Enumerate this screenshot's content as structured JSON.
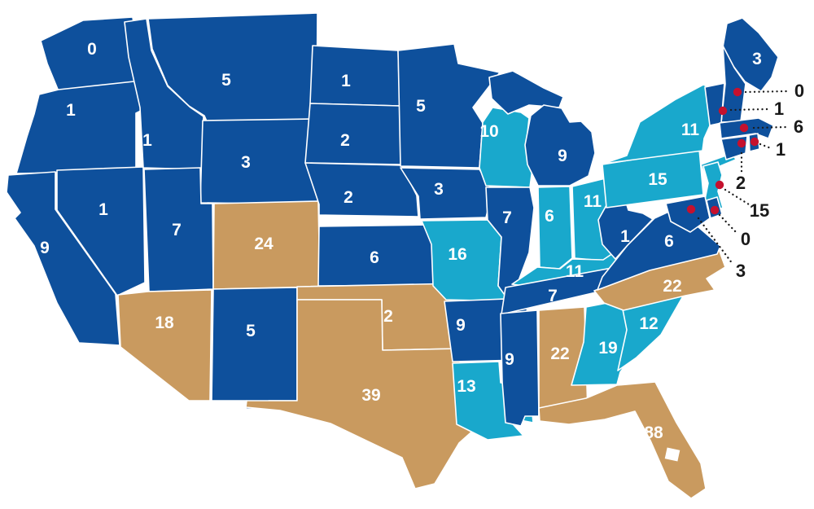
{
  "figure": {
    "name": "us-states-choropleth",
    "background": "#ffffff",
    "state_border_color": "#ffffff",
    "state_label_color": "#ffffff",
    "callout_label_color": "#1a1a1a",
    "marker_color": "#c5112e",
    "palette": {
      "navy": "#0e509c",
      "cyan": "#19a8cc",
      "tan": "#c99a5f"
    }
  },
  "chart_data": {
    "type": "choropleth-map",
    "region": "United States (contiguous 48 states)",
    "legend_position": "none",
    "color_categories": [
      "navy",
      "cyan",
      "tan"
    ],
    "states": [
      {
        "id": "WA",
        "value": "0",
        "category": "navy"
      },
      {
        "id": "OR",
        "value": "1",
        "category": "navy"
      },
      {
        "id": "CA",
        "value": "9",
        "category": "navy"
      },
      {
        "id": "NV",
        "value": "1",
        "category": "navy"
      },
      {
        "id": "ID",
        "value": "1",
        "category": "navy"
      },
      {
        "id": "MT",
        "value": "5",
        "category": "navy"
      },
      {
        "id": "WY",
        "value": "3",
        "category": "navy"
      },
      {
        "id": "UT",
        "value": "7",
        "category": "navy"
      },
      {
        "id": "CO",
        "value": "24",
        "category": "tan"
      },
      {
        "id": "AZ",
        "value": "18",
        "category": "tan"
      },
      {
        "id": "NM",
        "value": "5",
        "category": "navy"
      },
      {
        "id": "ND",
        "value": "1",
        "category": "navy"
      },
      {
        "id": "SD",
        "value": "2",
        "category": "navy"
      },
      {
        "id": "NE",
        "value": "2",
        "category": "navy"
      },
      {
        "id": "KS",
        "value": "6",
        "category": "navy"
      },
      {
        "id": "OK",
        "value": "2",
        "category": "tan"
      },
      {
        "id": "TX",
        "value": "39",
        "category": "tan"
      },
      {
        "id": "MN",
        "value": "5",
        "category": "navy"
      },
      {
        "id": "IA",
        "value": "3",
        "category": "navy"
      },
      {
        "id": "MO",
        "value": "16",
        "category": "cyan"
      },
      {
        "id": "AR",
        "value": "9",
        "category": "navy"
      },
      {
        "id": "LA",
        "value": "13",
        "category": "cyan"
      },
      {
        "id": "WI",
        "value": "10",
        "category": "cyan"
      },
      {
        "id": "IL",
        "value": "7",
        "category": "navy"
      },
      {
        "id": "MI",
        "value": "9",
        "category": "navy"
      },
      {
        "id": "IN",
        "value": "6",
        "category": "cyan"
      },
      {
        "id": "OH",
        "value": "11",
        "category": "cyan"
      },
      {
        "id": "KY",
        "value": "11",
        "category": "cyan"
      },
      {
        "id": "TN",
        "value": "7",
        "category": "navy"
      },
      {
        "id": "MS",
        "value": "9",
        "category": "navy"
      },
      {
        "id": "AL",
        "value": "22",
        "category": "tan"
      },
      {
        "id": "GA",
        "value": "19",
        "category": "cyan"
      },
      {
        "id": "FL",
        "value": "88",
        "category": "tan"
      },
      {
        "id": "SC",
        "value": "12",
        "category": "cyan"
      },
      {
        "id": "NC",
        "value": "22",
        "category": "tan"
      },
      {
        "id": "VA",
        "value": "6",
        "category": "navy"
      },
      {
        "id": "WV",
        "value": "1",
        "category": "navy"
      },
      {
        "id": "PA",
        "value": "15",
        "category": "cyan"
      },
      {
        "id": "NY",
        "value": "11",
        "category": "cyan"
      },
      {
        "id": "ME",
        "value": "3",
        "category": "navy"
      },
      {
        "id": "NH",
        "value": "0",
        "category": "navy",
        "callout": true
      },
      {
        "id": "VT",
        "value": "1",
        "category": "navy",
        "callout": true
      },
      {
        "id": "MA",
        "value": "6",
        "category": "navy",
        "callout": true
      },
      {
        "id": "RI",
        "value": "1",
        "category": "navy",
        "callout": true
      },
      {
        "id": "CT",
        "value": "2",
        "category": "navy",
        "callout": true
      },
      {
        "id": "NJ",
        "value": "15",
        "category": "cyan",
        "callout": true
      },
      {
        "id": "DE",
        "value": "0",
        "category": "navy",
        "callout": true
      },
      {
        "id": "MD",
        "value": "3",
        "category": "navy",
        "callout": true
      }
    ]
  }
}
